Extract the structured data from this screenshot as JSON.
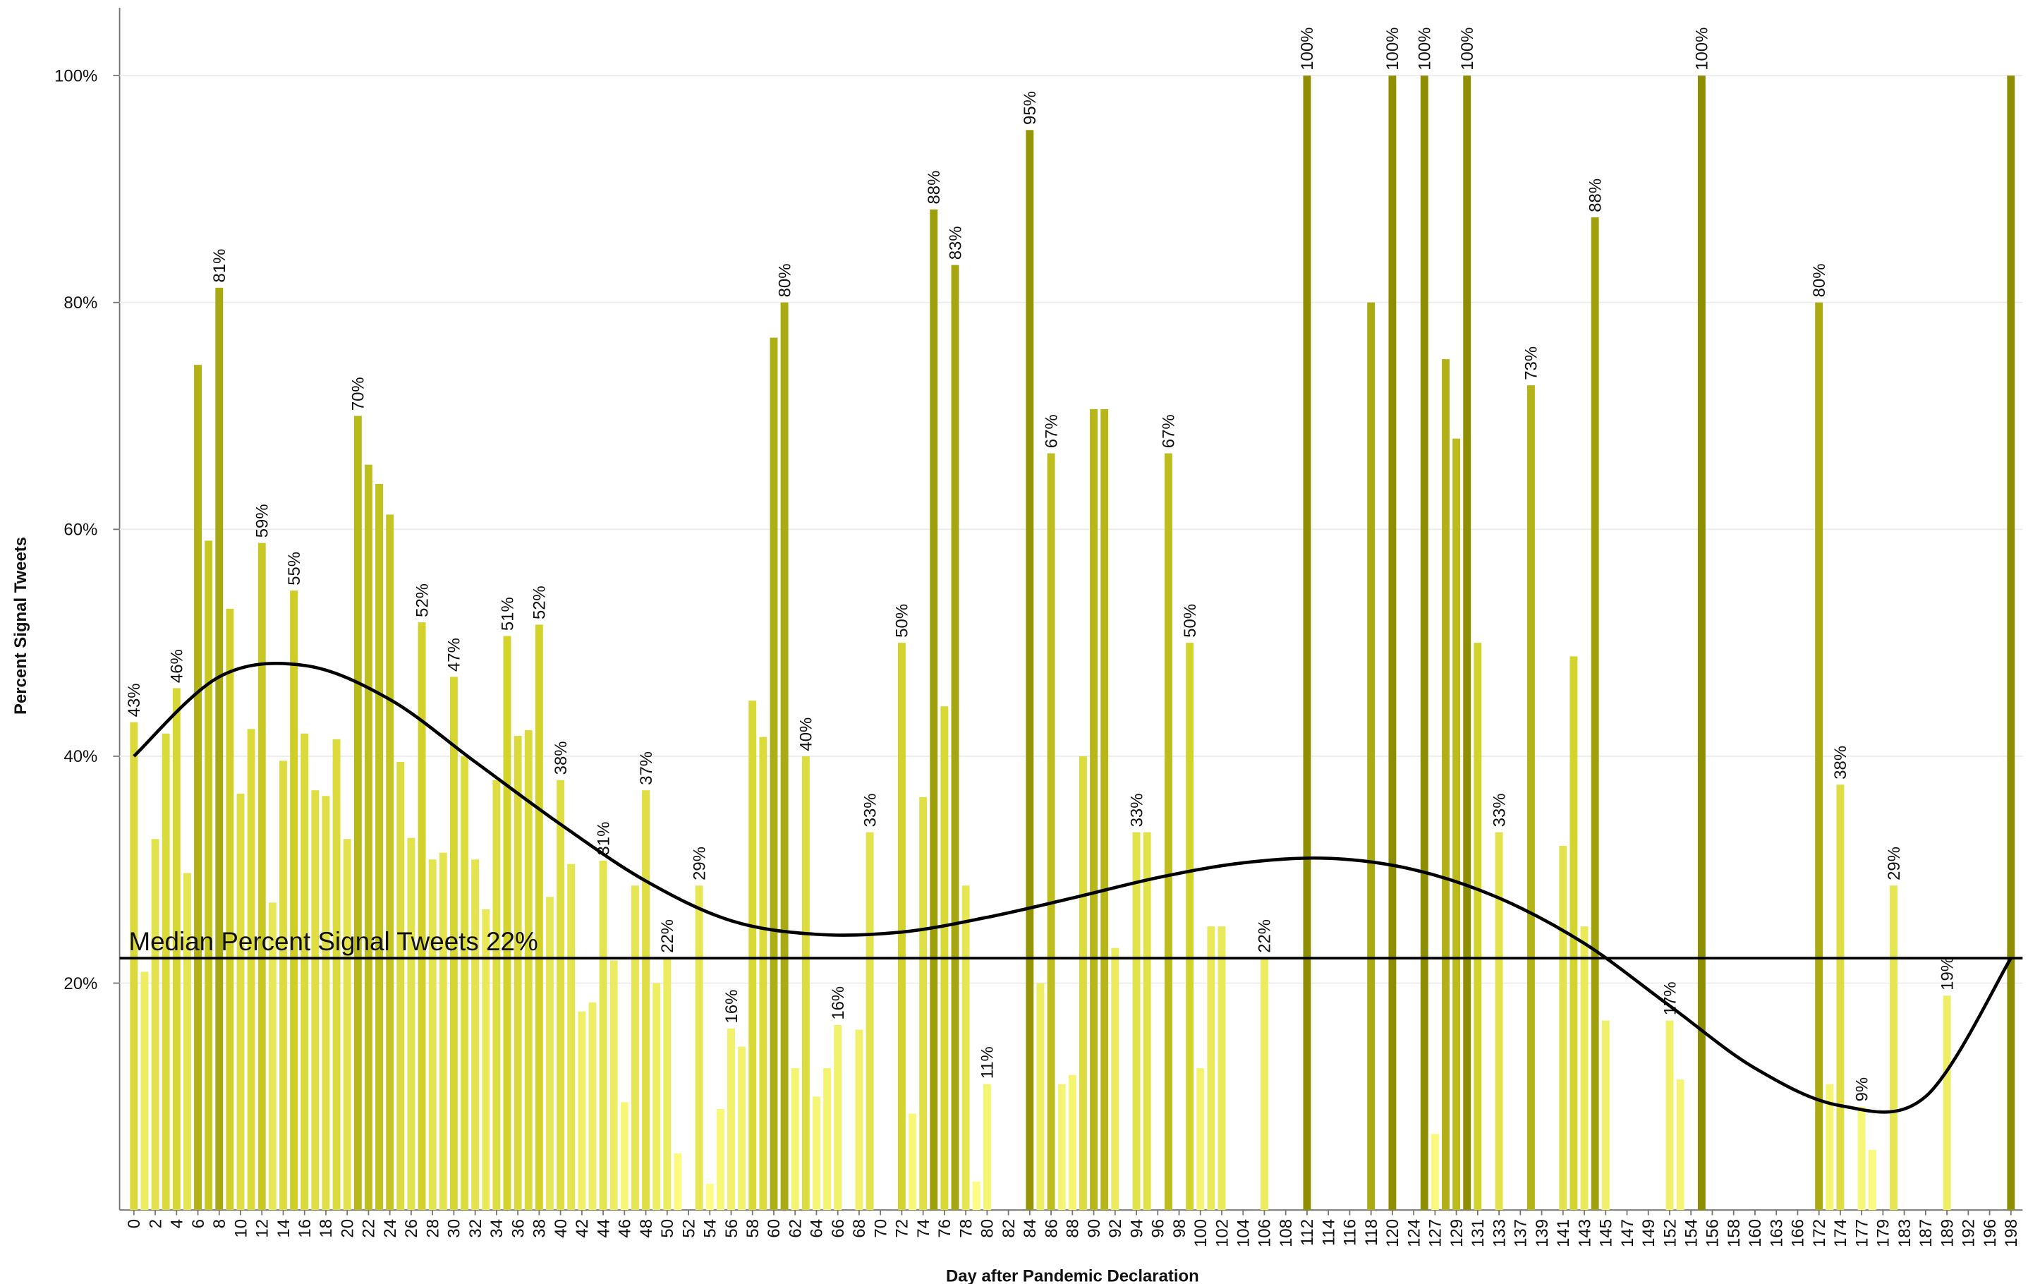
{
  "chart_data": {
    "type": "bar",
    "x_label": "Day after Pandemic Declaration",
    "y_label": "Percent Signal Tweets",
    "categories": [
      "0",
      null,
      "2",
      null,
      "4",
      null,
      "6",
      null,
      "8",
      null,
      "10",
      null,
      "12",
      null,
      "14",
      null,
      "16",
      null,
      "18",
      null,
      "20",
      null,
      "22",
      null,
      "24",
      null,
      "26",
      null,
      "28",
      null,
      "30",
      null,
      "32",
      null,
      "34",
      null,
      "36",
      null,
      "38",
      null,
      "40",
      null,
      "42",
      null,
      "44",
      null,
      "46",
      null,
      "48",
      null,
      "50",
      null,
      "52",
      null,
      "54",
      null,
      "56",
      null,
      "58",
      null,
      "60",
      null,
      "62",
      null,
      "64",
      null,
      "66",
      null,
      "68",
      null,
      "70",
      null,
      "72",
      null,
      "74",
      null,
      "76",
      null,
      "78",
      null,
      "80",
      null,
      "82",
      null,
      "84",
      null,
      "86",
      null,
      "88",
      null,
      "90",
      null,
      "92",
      null,
      "94",
      null,
      "96",
      null,
      "98",
      null,
      "100",
      null,
      "102",
      null,
      "104",
      null,
      "106",
      null,
      "108",
      null,
      "112",
      null,
      "114",
      null,
      "116",
      null,
      "118",
      null,
      "120",
      null,
      "124",
      null,
      "127",
      null,
      "129",
      null,
      "131",
      null,
      "133",
      null,
      "137",
      null,
      "139",
      null,
      "141",
      null,
      "143",
      null,
      "145",
      null,
      "147",
      null,
      "149",
      null,
      "152",
      null,
      "154",
      null,
      "156",
      null,
      "158",
      null,
      "160",
      null,
      "163",
      null,
      "166",
      null,
      "172",
      null,
      "174",
      null,
      "177",
      null,
      "179",
      null,
      "183",
      null,
      "187",
      null,
      "189",
      null,
      "192",
      null,
      "196",
      null,
      "198"
    ],
    "values": [
      43,
      21,
      32.7,
      42,
      46,
      29.7,
      74.5,
      59,
      81.3,
      53,
      36.7,
      42.4,
      58.8,
      27.1,
      39.6,
      54.6,
      42,
      37,
      36.5,
      41.5,
      32.7,
      70,
      65.7,
      64,
      61.3,
      39.5,
      32.8,
      51.8,
      30.9,
      31.5,
      47,
      40,
      30.9,
      26.5,
      37.9,
      50.6,
      41.8,
      42.3,
      51.6,
      27.6,
      37.9,
      30.5,
      17.5,
      18.3,
      30.8,
      22,
      9.5,
      28.6,
      37,
      20,
      22.2,
      5,
      0,
      28.6,
      2.3,
      8.9,
      16,
      14.4,
      44.9,
      41.7,
      76.9,
      80,
      12.5,
      40,
      10,
      12.5,
      16.3,
      0,
      15.9,
      33.3,
      0,
      0,
      50,
      8.5,
      36.4,
      88.2,
      44.4,
      83.3,
      28.6,
      2.5,
      11.1,
      0,
      0,
      0,
      95.2,
      20,
      66.7,
      11.1,
      11.9,
      40,
      70.6,
      70.6,
      23.1,
      0,
      33.3,
      33.3,
      0,
      66.7,
      0,
      50,
      12.5,
      25,
      25,
      0,
      0,
      0,
      22.2,
      0,
      0,
      0,
      100,
      0,
      0,
      0,
      0,
      0,
      80,
      0,
      100,
      0,
      0,
      100,
      6.7,
      75,
      68,
      100,
      50,
      0,
      33.3,
      0,
      0,
      72.7,
      0,
      0,
      32.1,
      48.8,
      25,
      87.5,
      16.7,
      0,
      0,
      0,
      0,
      0,
      16.7,
      11.5,
      0,
      100,
      0,
      0,
      0,
      0,
      0,
      0,
      0,
      0,
      0,
      0,
      80,
      11.1,
      37.5,
      0,
      9.1,
      5.3,
      0,
      28.6,
      0,
      0,
      0,
      0,
      18.9,
      0,
      0,
      0,
      0,
      0,
      100
    ],
    "value_labels": [
      "43%",
      null,
      null,
      null,
      "46%",
      null,
      null,
      null,
      "81%",
      null,
      null,
      null,
      "59%",
      null,
      null,
      "55%",
      null,
      null,
      null,
      null,
      null,
      "70%",
      null,
      null,
      null,
      null,
      null,
      "52%",
      null,
      null,
      "47%",
      null,
      null,
      null,
      null,
      "51%",
      null,
      null,
      "52%",
      null,
      "38%",
      null,
      null,
      null,
      "31%",
      null,
      null,
      null,
      "37%",
      null,
      "22%",
      null,
      null,
      "29%",
      null,
      null,
      "16%",
      null,
      null,
      null,
      null,
      "80%",
      null,
      "40%",
      null,
      null,
      "16%",
      null,
      null,
      "33%",
      null,
      null,
      "50%",
      null,
      null,
      "88%",
      null,
      "83%",
      null,
      null,
      "11%",
      null,
      null,
      null,
      "95%",
      null,
      "67%",
      null,
      null,
      null,
      null,
      null,
      null,
      null,
      "33%",
      null,
      null,
      "67%",
      null,
      "50%",
      null,
      null,
      null,
      null,
      null,
      null,
      "22%",
      null,
      null,
      null,
      "100%",
      null,
      null,
      null,
      null,
      null,
      null,
      null,
      "100%",
      null,
      null,
      "100%",
      null,
      null,
      null,
      "100%",
      null,
      null,
      "33%",
      null,
      null,
      "73%",
      null,
      null,
      null,
      null,
      null,
      "88%",
      null,
      null,
      null,
      null,
      null,
      null,
      "17%",
      null,
      null,
      "100%",
      null,
      null,
      null,
      null,
      null,
      null,
      null,
      null,
      null,
      null,
      "80%",
      null,
      "38%",
      null,
      "9%",
      null,
      null,
      "29%",
      null,
      null,
      null,
      null,
      "19%",
      null,
      null,
      null,
      null,
      null,
      null
    ],
    "color_scale": [
      "#ffff88",
      "#d2d22a",
      "#8a8a00"
    ],
    "ylim": [
      0,
      103
    ],
    "yticks": [
      {
        "value": 20,
        "label": "20%"
      },
      {
        "value": 40,
        "label": "40%"
      },
      {
        "value": 60,
        "label": "60%"
      },
      {
        "value": 80,
        "label": "80%"
      },
      {
        "value": 100,
        "label": "100%"
      }
    ],
    "grid": true,
    "median": {
      "value": 22.2,
      "label": "Median Percent Signal Tweets 22%"
    },
    "trend": {
      "color": "#000000",
      "values": [
        40,
        47,
        48,
        45,
        39.5,
        34,
        29,
        25.5,
        24.3,
        24.5,
        25.8,
        27.5,
        29.3,
        30.6,
        31,
        30,
        27.5,
        23.5,
        18,
        12.5,
        9.2,
        10,
        22.2
      ]
    }
  }
}
